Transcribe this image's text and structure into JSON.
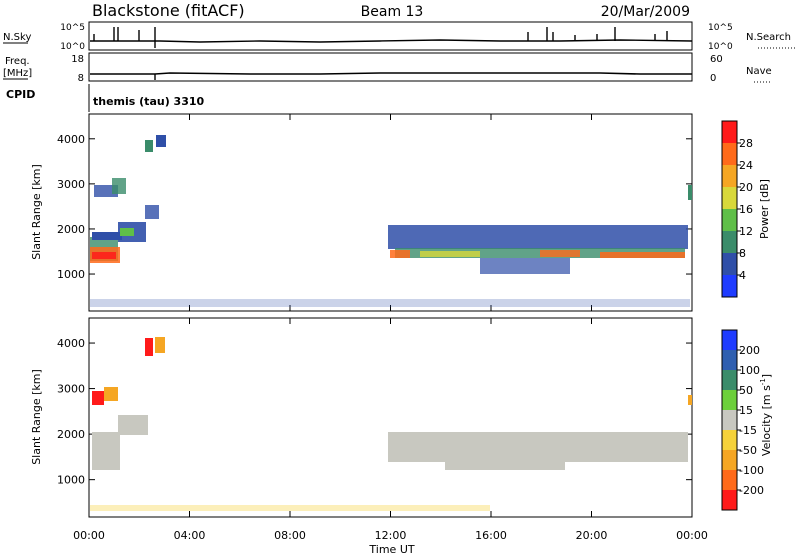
{
  "header": {
    "station": "Blackstone (fitACF)",
    "beam": "Beam 13",
    "date": "20/Mar/2009"
  },
  "aux": {
    "nsky_label": "N.Sky",
    "nsky_ticks": [
      "10^5",
      "10^0"
    ],
    "nsearch_label": "N.Search",
    "nsearch_ticks": [
      "10^5",
      "10^0"
    ],
    "freq_label_1": "Freq.",
    "freq_label_2": "[MHz]",
    "freq_ticks": [
      "18",
      "8"
    ],
    "nave_label": "Nave",
    "nave_ticks": [
      "60",
      "0"
    ],
    "cpid_label": "CPID",
    "cpid_value": "themis (tau) 3310"
  },
  "chart_data": [
    {
      "type": "heatmap",
      "name": "power-panel",
      "ylabel": "Slant Range [km]",
      "yticks": [
        1000,
        2000,
        3000,
        4000
      ],
      "ylim": [
        180,
        4550
      ],
      "xlabel": "",
      "xlim": [
        0,
        24
      ],
      "xtick_values": [
        0,
        4,
        8,
        12,
        16,
        20,
        24
      ],
      "colorbar": {
        "label": "Power [dB]",
        "ticks": [
          "4",
          "8",
          "12",
          "16",
          "20",
          "24",
          "28"
        ],
        "range": [
          0,
          32
        ],
        "colors": [
          "#1f3cff",
          "#2f4fa8",
          "#3a8c6a",
          "#5fbf48",
          "#d8d83a",
          "#f5a623",
          "#ff6a1a",
          "#ff1a1a"
        ]
      }
    },
    {
      "type": "heatmap",
      "name": "velocity-panel",
      "ylabel": "Slant Range [km]",
      "yticks": [
        1000,
        2000,
        3000,
        4000
      ],
      "ylim": [
        180,
        4550
      ],
      "xlabel": "Time UT",
      "xlim": [
        0,
        24
      ],
      "xtick_values": [
        0,
        4,
        8,
        12,
        16,
        20,
        24
      ],
      "xticks": [
        "00:00",
        "04:00",
        "08:00",
        "12:00",
        "16:00",
        "20:00",
        "00:00"
      ],
      "colorbar": {
        "label": "Velocity [m s",
        "label_sup": "-1",
        "label_end": "]",
        "ticks": [
          "200",
          "100",
          "50",
          "15",
          "-15",
          "-50",
          "-100",
          "-200"
        ],
        "colors": [
          "#1f3cff",
          "#2f5fb0",
          "#3a8c6a",
          "#6ccf3a",
          "#c8c8c0",
          "#f5d23a",
          "#f5a623",
          "#ff6a1a",
          "#ff1a1a"
        ]
      }
    }
  ]
}
